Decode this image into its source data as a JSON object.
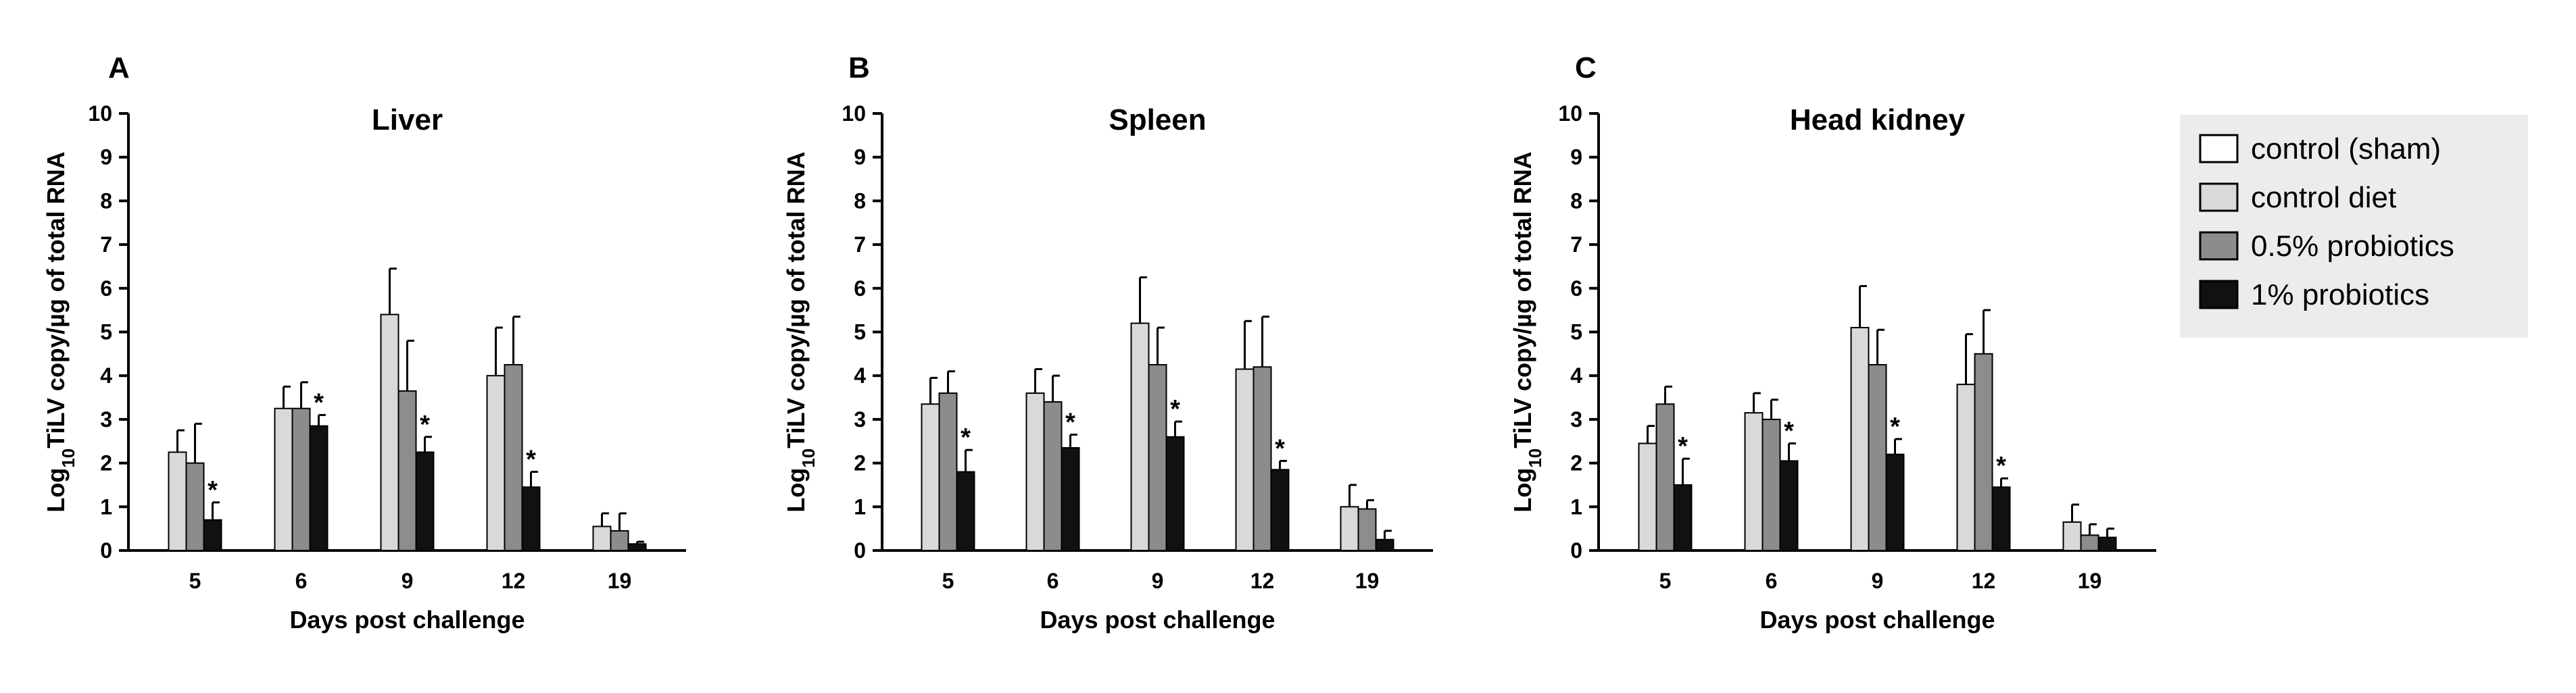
{
  "colors": {
    "series": [
      "#ffffff",
      "#d9d9d9",
      "#8c8c8c",
      "#111111"
    ],
    "axis": "#000000",
    "legend_bg": "#ececec"
  },
  "legend": {
    "items": [
      "control (sham)",
      "control diet",
      "0.5% probiotics",
      "1% probiotics"
    ]
  },
  "chart_data": [
    {
      "type": "bar",
      "panel": "A",
      "title": "Liver",
      "xlabel": "Days post challenge",
      "ylabel_prefix": "Log",
      "ylabel_subscript": "10",
      "ylabel_suffix": "TiLV copy/µg of total RNA",
      "ylim": [
        0,
        10
      ],
      "yticks": [
        "0",
        "1",
        "2",
        "3",
        "4",
        "5",
        "6",
        "7",
        "8",
        "9",
        "10"
      ],
      "categories": [
        "5",
        "6",
        "9",
        "12",
        "19"
      ],
      "series": [
        {
          "name": "control diet",
          "values": [
            2.25,
            3.25,
            5.4,
            4.0,
            0.55
          ],
          "errors": [
            0.5,
            0.5,
            1.05,
            1.1,
            0.3
          ]
        },
        {
          "name": "0.5% probiotics",
          "values": [
            2.0,
            3.25,
            3.65,
            4.25,
            0.45
          ],
          "errors": [
            0.9,
            0.6,
            1.15,
            1.1,
            0.4
          ]
        },
        {
          "name": "1% probiotics",
          "values": [
            0.7,
            2.85,
            2.25,
            1.45,
            0.15
          ],
          "errors": [
            0.4,
            0.25,
            0.35,
            0.35,
            0.05
          ]
        }
      ],
      "significance": [
        "*",
        "*",
        "*",
        "*",
        ""
      ]
    },
    {
      "type": "bar",
      "panel": "B",
      "title": "Spleen",
      "xlabel": "Days post challenge",
      "ylabel_prefix": "Log",
      "ylabel_subscript": "10",
      "ylabel_suffix": "TiLV copy/µg of total RNA",
      "ylim": [
        0,
        10
      ],
      "yticks": [
        "0",
        "1",
        "2",
        "3",
        "4",
        "5",
        "6",
        "7",
        "8",
        "9",
        "10"
      ],
      "categories": [
        "5",
        "6",
        "9",
        "12",
        "19"
      ],
      "series": [
        {
          "name": "control diet",
          "values": [
            3.35,
            3.6,
            5.2,
            4.15,
            1.0
          ],
          "errors": [
            0.6,
            0.55,
            1.05,
            1.1,
            0.5
          ]
        },
        {
          "name": "0.5% probiotics",
          "values": [
            3.6,
            3.4,
            4.25,
            4.2,
            0.95
          ],
          "errors": [
            0.5,
            0.6,
            0.85,
            1.15,
            0.2
          ]
        },
        {
          "name": "1% probiotics",
          "values": [
            1.8,
            2.35,
            2.6,
            1.85,
            0.25
          ],
          "errors": [
            0.5,
            0.3,
            0.35,
            0.2,
            0.2
          ]
        }
      ],
      "significance": [
        "*",
        "*",
        "*",
        "*",
        ""
      ]
    },
    {
      "type": "bar",
      "panel": "C",
      "title": "Head kidney",
      "xlabel": "Days post challenge",
      "ylabel_prefix": "Log",
      "ylabel_subscript": "10",
      "ylabel_suffix": "TiLV copy/µg of total RNA",
      "ylim": [
        0,
        10
      ],
      "yticks": [
        "0",
        "1",
        "2",
        "3",
        "4",
        "5",
        "6",
        "7",
        "8",
        "9",
        "10"
      ],
      "categories": [
        "5",
        "6",
        "9",
        "12",
        "19"
      ],
      "series": [
        {
          "name": "control diet",
          "values": [
            2.45,
            3.15,
            5.1,
            3.8,
            0.65
          ],
          "errors": [
            0.4,
            0.45,
            0.95,
            1.15,
            0.4
          ]
        },
        {
          "name": "0.5% probiotics",
          "values": [
            3.35,
            3.0,
            4.25,
            4.5,
            0.35
          ],
          "errors": [
            0.4,
            0.45,
            0.8,
            1.0,
            0.25
          ]
        },
        {
          "name": "1% probiotics",
          "values": [
            1.5,
            2.05,
            2.2,
            1.45,
            0.3
          ],
          "errors": [
            0.6,
            0.4,
            0.35,
            0.2,
            0.2
          ]
        }
      ],
      "significance": [
        "*",
        "*",
        "*",
        "*",
        ""
      ]
    }
  ]
}
